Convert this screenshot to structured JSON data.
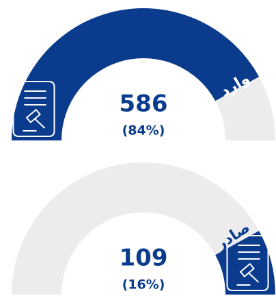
{
  "chart_data": [
    {
      "type": "gauge",
      "label": "وارد",
      "value": 586,
      "share": 84,
      "share_label": "(84%)",
      "lim": [
        0,
        100
      ],
      "start": "left",
      "color": "#0b3b8c",
      "track_color": "#ececec",
      "label_color": "#ffffff"
    },
    {
      "type": "gauge",
      "label": "صادر",
      "value": 109,
      "share": 16,
      "share_label": "(16%)",
      "lim": [
        0,
        100
      ],
      "start": "right",
      "color": "#0b3b8c",
      "track_color": "#ececec",
      "label_color": "#0b3b8c"
    }
  ]
}
